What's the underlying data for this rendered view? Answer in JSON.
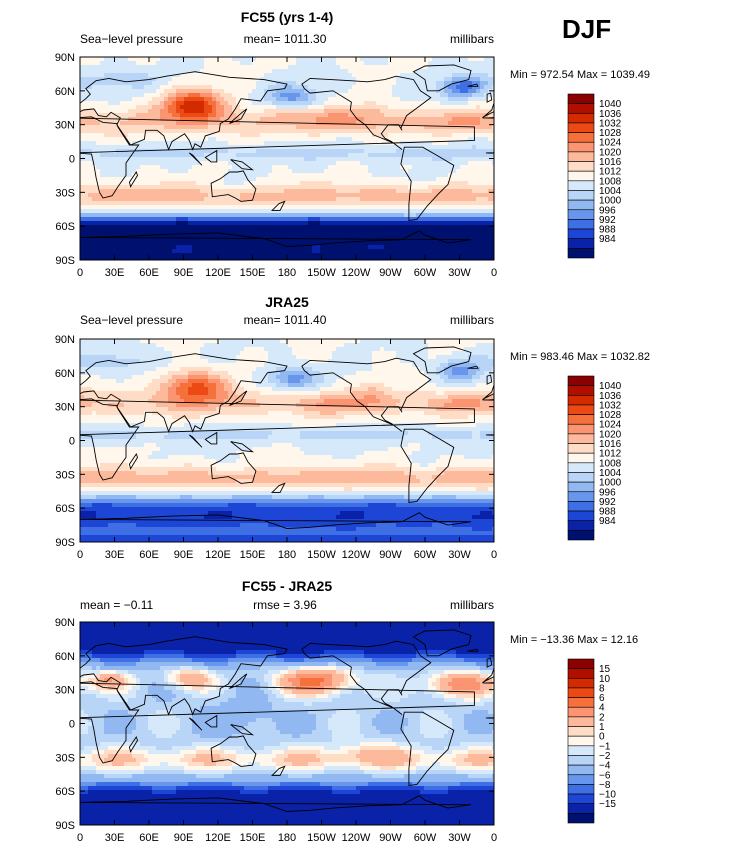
{
  "season": "DJF",
  "chart_data": [
    {
      "type": "heatmap",
      "title": "FC55 (yrs 1-4)",
      "left_label": "Sea−level pressure",
      "center_label": "mean= 1011.30",
      "right_label": "millibars",
      "minmax_label": "Min = 972.54 Max = 1039.49",
      "min": 972.54,
      "max": 1039.49,
      "lat_ticks": [
        "90N",
        "60N",
        "30N",
        "0",
        "30S",
        "60S",
        "90S"
      ],
      "lon_ticks": [
        "0",
        "30E",
        "60E",
        "90E",
        "120E",
        "150E",
        "180",
        "150W",
        "120W",
        "90W",
        "60W",
        "30W",
        "0"
      ],
      "legend_levels": [
        "1040",
        "1036",
        "1032",
        "1028",
        "1024",
        "1020",
        "1016",
        "1012",
        "1008",
        "1004",
        "1000",
        "996",
        "992",
        "988",
        "984"
      ],
      "palette": [
        "#8B0000",
        "#B00F00",
        "#D42A00",
        "#EC4A14",
        "#F6703C",
        "#FB9470",
        "#FDB99B",
        "#FEDCC6",
        "#FFF6EC",
        "#D6E9FB",
        "#B8D4F7",
        "#92B8F2",
        "#6796EC",
        "#3F6FE5",
        "#1D46D6",
        "#0A22A8",
        "#00106E"
      ],
      "field": "fc"
    },
    {
      "type": "heatmap",
      "title": "JRA25",
      "left_label": "Sea−level pressure",
      "center_label": "mean= 1011.40",
      "right_label": "millibars",
      "minmax_label": "Min = 983.46 Max = 1032.82",
      "min": 983.46,
      "max": 1032.82,
      "lat_ticks": [
        "90N",
        "60N",
        "30N",
        "0",
        "30S",
        "60S",
        "90S"
      ],
      "lon_ticks": [
        "0",
        "30E",
        "60E",
        "90E",
        "120E",
        "150E",
        "180",
        "150W",
        "120W",
        "90W",
        "60W",
        "30W",
        "0"
      ],
      "legend_levels": [
        "1040",
        "1036",
        "1032",
        "1028",
        "1024",
        "1020",
        "1016",
        "1012",
        "1008",
        "1004",
        "1000",
        "996",
        "992",
        "988",
        "984"
      ],
      "palette": [
        "#8B0000",
        "#B00F00",
        "#D42A00",
        "#EC4A14",
        "#F6703C",
        "#FB9470",
        "#FDB99B",
        "#FEDCC6",
        "#FFF6EC",
        "#D6E9FB",
        "#B8D4F7",
        "#92B8F2",
        "#6796EC",
        "#3F6FE5",
        "#1D46D6",
        "#0A22A8",
        "#00106E"
      ],
      "field": "jra"
    },
    {
      "type": "heatmap",
      "title": "FC55 - JRA25",
      "left_label": "mean =   −0.11",
      "center_label": "rmse =    3.96",
      "right_label": "millibars",
      "minmax_label": "Min = −13.36 Max =   12.16",
      "min": -13.36,
      "max": 12.16,
      "lat_ticks": [
        "90N",
        "60N",
        "30N",
        "0",
        "30S",
        "60S",
        "90S"
      ],
      "lon_ticks": [
        "0",
        "30E",
        "60E",
        "90E",
        "120E",
        "150E",
        "180",
        "150W",
        "120W",
        "90W",
        "60W",
        "30W",
        "0"
      ],
      "legend_levels": [
        "15",
        "10",
        "8",
        "6",
        "4",
        "2",
        "1",
        "0",
        "−1",
        "−2",
        "−4",
        "−6",
        "−8",
        "−10",
        "−15"
      ],
      "palette": [
        "#8B0000",
        "#B00F00",
        "#D42A00",
        "#EC4A14",
        "#F6703C",
        "#FB9470",
        "#FDB99B",
        "#FEDCC6",
        "#FFF6EC",
        "#D6E9FB",
        "#B8D4F7",
        "#92B8F2",
        "#6796EC",
        "#3F6FE5",
        "#1D46D6",
        "#0A22A8",
        "#00106E"
      ],
      "field": "diff"
    }
  ]
}
